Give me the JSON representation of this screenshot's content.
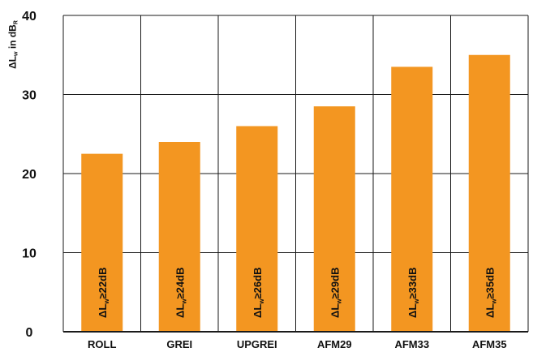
{
  "chart_data": {
    "type": "bar",
    "ylabel": {
      "prefix": "ΔL",
      "sub_w": "w",
      "mid": " in dB",
      "sub_r": "R"
    },
    "categories": [
      "ROLL",
      "GREI",
      "UPGREI",
      "AFM29",
      "AFM33",
      "AFM35"
    ],
    "values": [
      22.5,
      24,
      26,
      28.5,
      33.5,
      35
    ],
    "bar_labels": [
      {
        "prefix": "ΔL",
        "sub": "w",
        "rest": "≥22dB"
      },
      {
        "prefix": "ΔL",
        "sub": "w",
        "rest": "≥24dB"
      },
      {
        "prefix": "ΔL",
        "sub": "w",
        "rest": "≥26dB"
      },
      {
        "prefix": "ΔL",
        "sub": "w",
        "rest": "≥29dB"
      },
      {
        "prefix": "ΔL",
        "sub": "w",
        "rest": "≥33dB"
      },
      {
        "prefix": "ΔL",
        "sub": "w",
        "rest": "≥35dB"
      }
    ],
    "ylim": [
      0,
      40
    ],
    "yticks": [
      0,
      10,
      20,
      30,
      40
    ],
    "grid": true,
    "colors": {
      "bar": "#F39621",
      "grid": "#1a1a1a",
      "text": "#111111",
      "bar_label": "#111111"
    }
  }
}
